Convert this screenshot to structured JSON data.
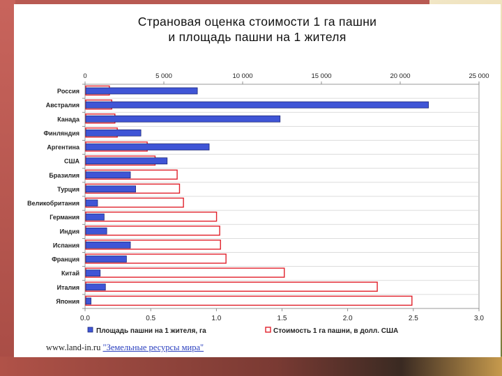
{
  "title_line1": "Страновая оценка стоимости 1 га пашни",
  "title_line2": "и площадь пашни на 1 жителя",
  "source": {
    "prefix": "www.land-in.ru ",
    "link": "\"Земельные ресурсы мира\""
  },
  "colors": {
    "area_fill": "#3f55d6",
    "area_stroke": "#1f2a7a",
    "cost_stroke": "#e0202a",
    "cost_fill": "#ffffff"
  },
  "chart_data": {
    "type": "bar",
    "orientation": "horizontal",
    "title": "Страновая оценка стоимости 1 га пашни и площадь пашни на 1 жителя",
    "categories": [
      "Россия",
      "Австралия",
      "Канада",
      "Финляндия",
      "Аргентина",
      "США",
      "Бразилия",
      "Турция",
      "Великобритания",
      "Германия",
      "Индия",
      "Испания",
      "Франция",
      "Китай",
      "Италия",
      "Япония"
    ],
    "series": [
      {
        "name": "Площадь пашни на 1 жителя, га",
        "axis": "bottom",
        "values": [
          0.85,
          2.61,
          1.48,
          0.42,
          0.94,
          0.62,
          0.34,
          0.38,
          0.09,
          0.14,
          0.16,
          0.34,
          0.31,
          0.11,
          0.15,
          0.04
        ]
      },
      {
        "name": "Стоимость 1 га пашни, в долл. США",
        "axis": "top",
        "values": [
          1500,
          1650,
          1850,
          2000,
          3900,
          4400,
          5800,
          5950,
          6200,
          8300,
          8500,
          8550,
          8900,
          12600,
          18500,
          20700
        ]
      }
    ],
    "top_axis": {
      "ticks": [
        "0",
        "5 000",
        "10 000",
        "15 000",
        "20 000",
        "25 000"
      ],
      "range": [
        0,
        25000
      ]
    },
    "bottom_axis": {
      "ticks": [
        "0.0",
        "0.5",
        "1.0",
        "1.5",
        "2.0",
        "2.5",
        "3.0"
      ],
      "range": [
        0,
        3.0
      ]
    },
    "legend_position": "bottom",
    "grid": true
  }
}
